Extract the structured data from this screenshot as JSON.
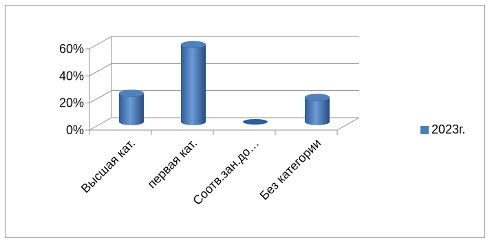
{
  "chart_data": {
    "type": "bar",
    "style": "3d-cylinder",
    "categories": [
      "Высшая кат.",
      "первая кат.",
      "Соотв.зан.до…",
      "Без категории"
    ],
    "series": [
      {
        "name": "2023г.",
        "values": [
          21,
          57,
          0,
          18
        ],
        "color": "#4a7ebb"
      }
    ],
    "ylim": [
      0,
      60
    ],
    "yticks": [
      "0%",
      "20%",
      "40%",
      "60%"
    ],
    "grid": true,
    "legend_position": "right"
  }
}
